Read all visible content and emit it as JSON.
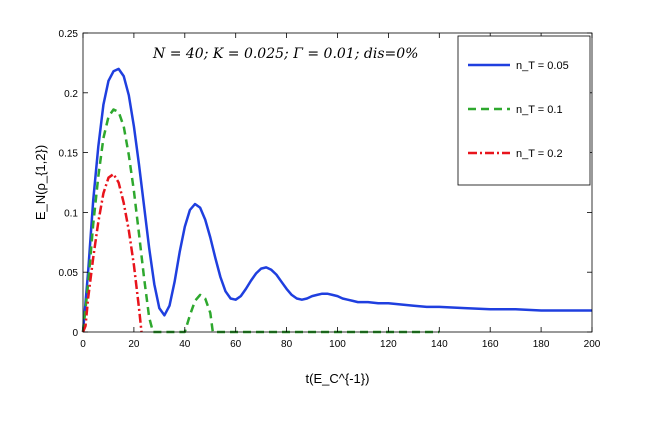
{
  "chart_data": {
    "type": "line",
    "annotation": "N = 40; K = 0.025; Γ = 0.01; dis=0%",
    "xlabel": "t(E_C^{-1})",
    "ylabel": "E_N(ρ_{1,2})",
    "xlim": [
      0,
      200
    ],
    "ylim": [
      0,
      0.25
    ],
    "xticks": [
      "0",
      "20",
      "40",
      "60",
      "80",
      "100",
      "120",
      "140",
      "160",
      "180",
      "200"
    ],
    "yticks": [
      "0",
      "0.05",
      "0.1",
      "0.15",
      "0.2",
      "0.25"
    ],
    "grid": false,
    "legend_position": "top-right",
    "series": [
      {
        "name": "n_T = 0.05",
        "color": "#1f3fdf",
        "dash": "solid",
        "x": [
          0,
          2,
          4,
          6,
          8,
          10,
          12,
          14,
          16,
          18,
          20,
          22,
          24,
          26,
          28,
          30,
          32,
          34,
          36,
          38,
          40,
          42,
          44,
          46,
          48,
          50,
          52,
          54,
          56,
          58,
          60,
          62,
          64,
          66,
          68,
          70,
          72,
          74,
          76,
          78,
          80,
          82,
          84,
          86,
          88,
          90,
          92,
          94,
          96,
          98,
          100,
          102,
          104,
          106,
          108,
          110,
          112,
          116,
          120,
          125,
          130,
          135,
          140,
          150,
          160,
          170,
          180,
          190,
          200
        ],
        "y": [
          0.0,
          0.05,
          0.11,
          0.155,
          0.19,
          0.21,
          0.218,
          0.22,
          0.214,
          0.198,
          0.172,
          0.14,
          0.105,
          0.07,
          0.04,
          0.02,
          0.014,
          0.022,
          0.042,
          0.067,
          0.088,
          0.102,
          0.107,
          0.104,
          0.094,
          0.079,
          0.062,
          0.046,
          0.034,
          0.028,
          0.027,
          0.03,
          0.036,
          0.043,
          0.049,
          0.053,
          0.054,
          0.052,
          0.048,
          0.042,
          0.036,
          0.031,
          0.028,
          0.027,
          0.028,
          0.03,
          0.031,
          0.032,
          0.032,
          0.031,
          0.03,
          0.028,
          0.027,
          0.026,
          0.025,
          0.025,
          0.025,
          0.024,
          0.024,
          0.023,
          0.022,
          0.021,
          0.021,
          0.02,
          0.019,
          0.019,
          0.018,
          0.018,
          0.018
        ]
      },
      {
        "name": "n_T = 0.1",
        "color": "#2ea82e",
        "dash": "8,5",
        "x": [
          0,
          2,
          4,
          6,
          8,
          10,
          12,
          14,
          16,
          18,
          20,
          22,
          24,
          26,
          27.5,
          30,
          35,
          40,
          42,
          44,
          46,
          48,
          50,
          51,
          55,
          60,
          80,
          100,
          120,
          140
        ],
        "y": [
          0.0,
          0.04,
          0.09,
          0.13,
          0.162,
          0.18,
          0.186,
          0.184,
          0.172,
          0.148,
          0.118,
          0.082,
          0.045,
          0.012,
          0.0,
          0.0,
          0.0,
          0.0,
          0.014,
          0.026,
          0.031,
          0.028,
          0.016,
          0.0,
          0.0,
          0.0,
          0.0,
          0.0,
          0.0,
          0.0
        ]
      },
      {
        "name": "n_T = 0.2",
        "color": "#e8141c",
        "dash": "9,3,2,3",
        "x": [
          0,
          1,
          2,
          4,
          6,
          8,
          10,
          12,
          14,
          16,
          18,
          20,
          22,
          23
        ],
        "y": [
          0.0,
          0.005,
          0.028,
          0.062,
          0.092,
          0.116,
          0.129,
          0.132,
          0.125,
          0.108,
          0.085,
          0.056,
          0.02,
          0.0
        ]
      }
    ]
  }
}
